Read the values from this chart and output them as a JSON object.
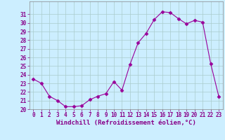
{
  "x": [
    0,
    1,
    2,
    3,
    4,
    5,
    6,
    7,
    8,
    9,
    10,
    11,
    12,
    13,
    14,
    15,
    16,
    17,
    18,
    19,
    20,
    21,
    22,
    23
  ],
  "y": [
    23.5,
    23.0,
    21.5,
    21.0,
    20.3,
    20.3,
    20.4,
    21.1,
    21.5,
    21.8,
    23.2,
    22.2,
    25.2,
    27.7,
    28.8,
    30.4,
    31.3,
    31.2,
    30.5,
    29.9,
    30.3,
    30.1,
    25.3,
    21.5
  ],
  "line_color": "#990099",
  "marker": "D",
  "marker_size": 2.5,
  "bg_color": "#cceeff",
  "grid_color": "#aacccc",
  "xlabel": "Windchill (Refroidissement éolien,°C)",
  "ylim": [
    20,
    32
  ],
  "xlim": [
    -0.5,
    23.5
  ],
  "yticks": [
    20,
    21,
    22,
    23,
    24,
    25,
    26,
    27,
    28,
    29,
    30,
    31
  ],
  "xticks": [
    0,
    1,
    2,
    3,
    4,
    5,
    6,
    7,
    8,
    9,
    10,
    11,
    12,
    13,
    14,
    15,
    16,
    17,
    18,
    19,
    20,
    21,
    22,
    23
  ],
  "tick_label_color": "#880088",
  "tick_label_fontsize": 5.5,
  "xlabel_fontsize": 6.5,
  "xlabel_color": "#880088",
  "xlabel_fontweight": "bold"
}
